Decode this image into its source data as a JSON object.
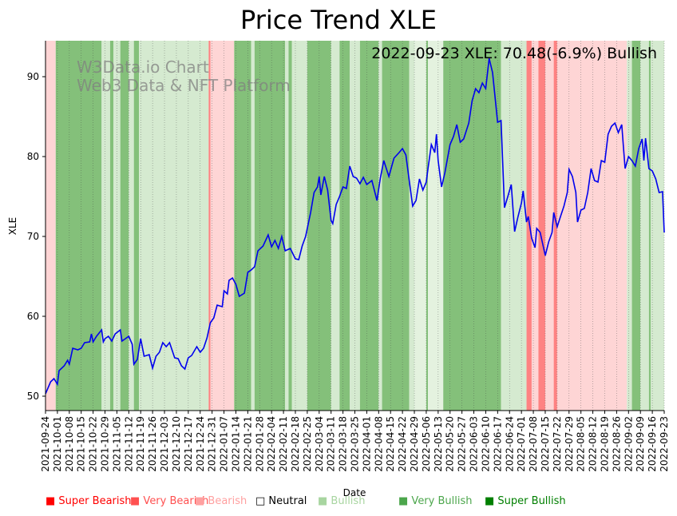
{
  "chart_data": {
    "type": "line",
    "title": "Price Trend XLE",
    "xlabel": "Date",
    "ylabel": "XLE",
    "ylim": [
      48.2,
      94.5
    ],
    "yticks": [
      50,
      60,
      70,
      80,
      90
    ],
    "annotation": "2022-09-23 XLE: 70.48(-6.9%) Bullish",
    "watermark": [
      "W3Data.io Chart",
      "Web3 Data & NFT Platform"
    ],
    "x_start": "2021-09-24",
    "x_end": "2022-09-23",
    "xticks": [
      "2021-09-24",
      "2021-10-01",
      "2021-10-08",
      "2021-10-15",
      "2021-10-22",
      "2021-10-29",
      "2021-11-05",
      "2021-11-12",
      "2021-11-19",
      "2021-11-26",
      "2021-12-03",
      "2021-12-10",
      "2021-12-17",
      "2021-12-24",
      "2021-12-31",
      "2022-01-07",
      "2022-01-14",
      "2022-01-21",
      "2022-01-28",
      "2022-02-04",
      "2022-02-11",
      "2022-02-18",
      "2022-02-25",
      "2022-03-04",
      "2022-03-11",
      "2022-03-18",
      "2022-03-25",
      "2022-04-01",
      "2022-04-08",
      "2022-04-15",
      "2022-04-22",
      "2022-04-29",
      "2022-05-06",
      "2022-05-13",
      "2022-05-20",
      "2022-05-27",
      "2022-06-03",
      "2022-06-10",
      "2022-06-17",
      "2022-06-24",
      "2022-07-01",
      "2022-07-08",
      "2022-07-15",
      "2022-07-22",
      "2022-07-29",
      "2022-08-05",
      "2022-08-12",
      "2022-08-19",
      "2022-08-26",
      "2022-09-02",
      "2022-09-09",
      "2022-09-16",
      "2022-09-23"
    ],
    "series": [
      {
        "name": "XLE",
        "color": "#0000ee",
        "points": [
          [
            "2021-09-24",
            50.3
          ],
          [
            "2021-09-27",
            51.8
          ],
          [
            "2021-09-29",
            52.2
          ],
          [
            "2021-10-01",
            51.5
          ],
          [
            "2021-10-02",
            53.2
          ],
          [
            "2021-10-05",
            53.8
          ],
          [
            "2021-10-07",
            54.5
          ],
          [
            "2021-10-08",
            54.0
          ],
          [
            "2021-10-10",
            56.0
          ],
          [
            "2021-10-13",
            55.8
          ],
          [
            "2021-10-15",
            56.0
          ],
          [
            "2021-10-17",
            56.7
          ],
          [
            "2021-10-20",
            56.8
          ],
          [
            "2021-10-21",
            57.8
          ],
          [
            "2021-10-22",
            56.8
          ],
          [
            "2021-10-24",
            57.5
          ],
          [
            "2021-10-27",
            58.3
          ],
          [
            "2021-10-28",
            56.8
          ],
          [
            "2021-10-29",
            57.2
          ],
          [
            "2021-10-31",
            57.5
          ],
          [
            "2021-11-02",
            56.9
          ],
          [
            "2021-11-04",
            57.8
          ],
          [
            "2021-11-07",
            58.3
          ],
          [
            "2021-11-08",
            56.9
          ],
          [
            "2021-11-10",
            57.2
          ],
          [
            "2021-11-12",
            57.5
          ],
          [
            "2021-11-14",
            56.5
          ],
          [
            "2021-11-15",
            54.0
          ],
          [
            "2021-11-17",
            54.6
          ],
          [
            "2021-11-19",
            57.2
          ],
          [
            "2021-11-21",
            55.0
          ],
          [
            "2021-11-24",
            55.2
          ],
          [
            "2021-11-26",
            53.5
          ],
          [
            "2021-11-28",
            55.0
          ],
          [
            "2021-11-30",
            55.5
          ],
          [
            "2021-12-02",
            56.7
          ],
          [
            "2021-12-04",
            56.2
          ],
          [
            "2021-12-06",
            56.7
          ],
          [
            "2021-12-09",
            54.8
          ],
          [
            "2021-12-11",
            54.7
          ],
          [
            "2021-12-13",
            53.8
          ],
          [
            "2021-12-15",
            53.4
          ],
          [
            "2021-12-17",
            54.8
          ],
          [
            "2021-12-19",
            55.1
          ],
          [
            "2021-12-22",
            56.2
          ],
          [
            "2021-12-24",
            55.5
          ],
          [
            "2021-12-26",
            56.0
          ],
          [
            "2021-12-28",
            57.3
          ],
          [
            "2021-12-30",
            59.2
          ],
          [
            "2022-01-01",
            59.8
          ],
          [
            "2022-01-03",
            61.4
          ],
          [
            "2022-01-06",
            61.2
          ],
          [
            "2022-01-07",
            63.2
          ],
          [
            "2022-01-09",
            62.8
          ],
          [
            "2022-01-10",
            64.5
          ],
          [
            "2022-01-12",
            64.8
          ],
          [
            "2022-01-14",
            64.0
          ],
          [
            "2022-01-16",
            62.5
          ],
          [
            "2022-01-19",
            62.9
          ],
          [
            "2022-01-21",
            65.5
          ],
          [
            "2022-01-23",
            65.8
          ],
          [
            "2022-01-25",
            66.2
          ],
          [
            "2022-01-27",
            68.2
          ],
          [
            "2022-01-30",
            68.8
          ],
          [
            "2022-02-02",
            70.2
          ],
          [
            "2022-02-04",
            68.7
          ],
          [
            "2022-02-06",
            69.5
          ],
          [
            "2022-02-08",
            68.5
          ],
          [
            "2022-02-10",
            70.0
          ],
          [
            "2022-02-12",
            68.2
          ],
          [
            "2022-02-15",
            68.5
          ],
          [
            "2022-02-18",
            67.2
          ],
          [
            "2022-02-20",
            67.1
          ],
          [
            "2022-02-22",
            68.8
          ],
          [
            "2022-02-24",
            70.0
          ],
          [
            "2022-02-27",
            73.0
          ],
          [
            "2022-03-01",
            75.5
          ],
          [
            "2022-03-03",
            76.2
          ],
          [
            "2022-03-04",
            77.5
          ],
          [
            "2022-03-05",
            75.2
          ],
          [
            "2022-03-07",
            77.5
          ],
          [
            "2022-03-09",
            75.8
          ],
          [
            "2022-03-11",
            72.0
          ],
          [
            "2022-03-12",
            71.6
          ],
          [
            "2022-03-14",
            74.0
          ],
          [
            "2022-03-16",
            75.0
          ],
          [
            "2022-03-18",
            76.2
          ],
          [
            "2022-03-20",
            76.0
          ],
          [
            "2022-03-22",
            78.8
          ],
          [
            "2022-03-24",
            77.5
          ],
          [
            "2022-03-26",
            77.3
          ],
          [
            "2022-03-28",
            76.6
          ],
          [
            "2022-03-30",
            77.4
          ],
          [
            "2022-04-01",
            76.5
          ],
          [
            "2022-04-04",
            77.0
          ],
          [
            "2022-04-07",
            74.5
          ],
          [
            "2022-04-09",
            77.3
          ],
          [
            "2022-04-11",
            79.5
          ],
          [
            "2022-04-14",
            77.5
          ],
          [
            "2022-04-17",
            79.8
          ],
          [
            "2022-04-20",
            80.5
          ],
          [
            "2022-04-22",
            81.0
          ],
          [
            "2022-04-24",
            80.2
          ],
          [
            "2022-04-26",
            77.0
          ],
          [
            "2022-04-28",
            73.8
          ],
          [
            "2022-04-30",
            74.5
          ],
          [
            "2022-05-02",
            77.2
          ],
          [
            "2022-05-04",
            75.8
          ],
          [
            "2022-05-06",
            76.8
          ],
          [
            "2022-05-07",
            78.5
          ],
          [
            "2022-05-09",
            81.5
          ],
          [
            "2022-05-11",
            80.5
          ],
          [
            "2022-05-12",
            82.8
          ],
          [
            "2022-05-13",
            79.5
          ],
          [
            "2022-05-15",
            76.2
          ],
          [
            "2022-05-17",
            78.0
          ],
          [
            "2022-05-20",
            81.5
          ],
          [
            "2022-05-22",
            82.5
          ],
          [
            "2022-05-24",
            84.0
          ],
          [
            "2022-05-26",
            81.8
          ],
          [
            "2022-05-28",
            82.2
          ],
          [
            "2022-05-31",
            84.2
          ],
          [
            "2022-06-02",
            87.0
          ],
          [
            "2022-06-04",
            88.5
          ],
          [
            "2022-06-06",
            88.0
          ],
          [
            "2022-06-08",
            89.2
          ],
          [
            "2022-06-10",
            88.5
          ],
          [
            "2022-06-12",
            92.3
          ],
          [
            "2022-06-14",
            90.5
          ],
          [
            "2022-06-17",
            84.3
          ],
          [
            "2022-06-19",
            84.5
          ],
          [
            "2022-06-21",
            73.6
          ],
          [
            "2022-06-23",
            75.0
          ],
          [
            "2022-06-25",
            76.5
          ],
          [
            "2022-06-27",
            70.6
          ],
          [
            "2022-06-29",
            72.5
          ],
          [
            "2022-07-01",
            74.2
          ],
          [
            "2022-07-02",
            75.7
          ],
          [
            "2022-07-04",
            71.8
          ],
          [
            "2022-07-05",
            72.5
          ],
          [
            "2022-07-07",
            69.8
          ],
          [
            "2022-07-09",
            68.6
          ],
          [
            "2022-07-10",
            71.0
          ],
          [
            "2022-07-12",
            70.5
          ],
          [
            "2022-07-15",
            67.6
          ],
          [
            "2022-07-17",
            69.3
          ],
          [
            "2022-07-19",
            70.5
          ],
          [
            "2022-07-20",
            73.0
          ],
          [
            "2022-07-22",
            71.2
          ],
          [
            "2022-07-24",
            72.5
          ],
          [
            "2022-07-26",
            73.8
          ],
          [
            "2022-07-28",
            75.5
          ],
          [
            "2022-07-29",
            78.4
          ],
          [
            "2022-07-31",
            77.5
          ],
          [
            "2022-08-02",
            75.5
          ],
          [
            "2022-08-03",
            71.8
          ],
          [
            "2022-08-05",
            73.3
          ],
          [
            "2022-08-07",
            73.5
          ],
          [
            "2022-08-09",
            75.5
          ],
          [
            "2022-08-11",
            78.5
          ],
          [
            "2022-08-13",
            77.0
          ],
          [
            "2022-08-15",
            76.8
          ],
          [
            "2022-08-17",
            79.5
          ],
          [
            "2022-08-19",
            79.3
          ],
          [
            "2022-08-21",
            82.8
          ],
          [
            "2022-08-23",
            83.8
          ],
          [
            "2022-08-25",
            84.2
          ],
          [
            "2022-08-27",
            83.0
          ],
          [
            "2022-08-29",
            84.0
          ],
          [
            "2022-08-30",
            81.2
          ],
          [
            "2022-08-31",
            78.5
          ],
          [
            "2022-09-02",
            80.0
          ],
          [
            "2022-09-04",
            79.5
          ],
          [
            "2022-09-06",
            78.8
          ],
          [
            "2022-09-08",
            81.0
          ],
          [
            "2022-09-10",
            82.2
          ],
          [
            "2022-09-11",
            79.5
          ],
          [
            "2022-09-12",
            82.3
          ],
          [
            "2022-09-14",
            78.5
          ],
          [
            "2022-09-16",
            78.2
          ],
          [
            "2022-09-18",
            77.2
          ],
          [
            "2022-09-20",
            75.5
          ],
          [
            "2022-09-22",
            75.6
          ],
          [
            "2022-09-23",
            70.5
          ]
        ]
      }
    ],
    "regimes": [
      [
        "2021-09-24",
        "2021-09-30",
        "very_bearish_light"
      ],
      [
        "2021-09-30",
        "2021-10-27",
        "very_bullish"
      ],
      [
        "2021-10-27",
        "2021-11-01",
        "bullish"
      ],
      [
        "2021-11-01",
        "2021-11-03",
        "very_bullish"
      ],
      [
        "2021-11-03",
        "2021-11-07",
        "bullish"
      ],
      [
        "2021-11-07",
        "2021-11-12",
        "very_bullish"
      ],
      [
        "2021-11-12",
        "2021-11-15",
        "bullish"
      ],
      [
        "2021-11-15",
        "2021-11-18",
        "very_bullish"
      ],
      [
        "2021-11-18",
        "2021-12-29",
        "bullish"
      ],
      [
        "2021-12-29",
        "2021-12-30",
        "very_bearish"
      ],
      [
        "2021-12-30",
        "2022-01-13",
        "bearish"
      ],
      [
        "2022-01-13",
        "2022-01-23",
        "very_bullish"
      ],
      [
        "2022-01-23",
        "2022-01-25",
        "bullish"
      ],
      [
        "2022-01-25",
        "2022-02-12",
        "very_bullish"
      ],
      [
        "2022-02-12",
        "2022-02-14",
        "bullish"
      ],
      [
        "2022-02-14",
        "2022-02-16",
        "very_bullish"
      ],
      [
        "2022-02-16",
        "2022-02-25",
        "bullish"
      ],
      [
        "2022-02-25",
        "2022-03-11",
        "very_bullish"
      ],
      [
        "2022-03-11",
        "2022-03-16",
        "bullish"
      ],
      [
        "2022-03-16",
        "2022-03-22",
        "very_bullish"
      ],
      [
        "2022-03-22",
        "2022-03-28",
        "bullish"
      ],
      [
        "2022-03-28",
        "2022-04-08",
        "very_bullish"
      ],
      [
        "2022-04-08",
        "2022-04-10",
        "bullish"
      ],
      [
        "2022-04-10",
        "2022-04-26",
        "very_bullish"
      ],
      [
        "2022-04-26",
        "2022-04-29",
        "bullish"
      ],
      [
        "2022-04-29",
        "2022-05-06",
        "neutral_light"
      ],
      [
        "2022-05-06",
        "2022-05-07",
        "very_bullish"
      ],
      [
        "2022-05-07",
        "2022-05-16",
        "neutral_light"
      ],
      [
        "2022-05-16",
        "2022-06-19",
        "very_bullish"
      ],
      [
        "2022-06-19",
        "2022-07-04",
        "bullish"
      ],
      [
        "2022-07-04",
        "2022-07-07",
        "very_bearish"
      ],
      [
        "2022-07-07",
        "2022-07-11",
        "bearish"
      ],
      [
        "2022-07-11",
        "2022-07-15",
        "very_bearish"
      ],
      [
        "2022-07-15",
        "2022-07-20",
        "bearish"
      ],
      [
        "2022-07-20",
        "2022-07-22",
        "very_bearish"
      ],
      [
        "2022-07-22",
        "2022-09-01",
        "bearish"
      ],
      [
        "2022-09-01",
        "2022-09-04",
        "bullish"
      ],
      [
        "2022-09-04",
        "2022-09-09",
        "very_bullish"
      ],
      [
        "2022-09-09",
        "2022-09-14",
        "bullish"
      ],
      [
        "2022-09-14",
        "2022-09-15",
        "very_bullish"
      ],
      [
        "2022-09-15",
        "2022-09-23",
        "bullish"
      ]
    ],
    "regime_colors": {
      "bullish": "#d5ead0",
      "very_bullish": "#84c07a",
      "neutral_light": "#e4f2df",
      "bearish": "#fed5d5",
      "very_bearish_light": "#fed5d5",
      "very_bearish": "#fe8282"
    },
    "legend": [
      {
        "label": "Super Bearish",
        "marker": "■",
        "color": "#ff0000"
      },
      {
        "label": "Very Bearish",
        "marker": "■",
        "color": "#ff5050"
      },
      {
        "label": "Bearish",
        "marker": "■",
        "color": "#ffa0a0"
      },
      {
        "label": "Neutral",
        "marker": "□",
        "color": "#000000"
      },
      {
        "label": "Bullish",
        "marker": "■",
        "color": "#a8d5a0"
      },
      {
        "label": "Very Bullish",
        "marker": "■",
        "color": "#4ca64c"
      },
      {
        "label": "Super Bullish",
        "marker": "■",
        "color": "#007f00"
      }
    ]
  }
}
